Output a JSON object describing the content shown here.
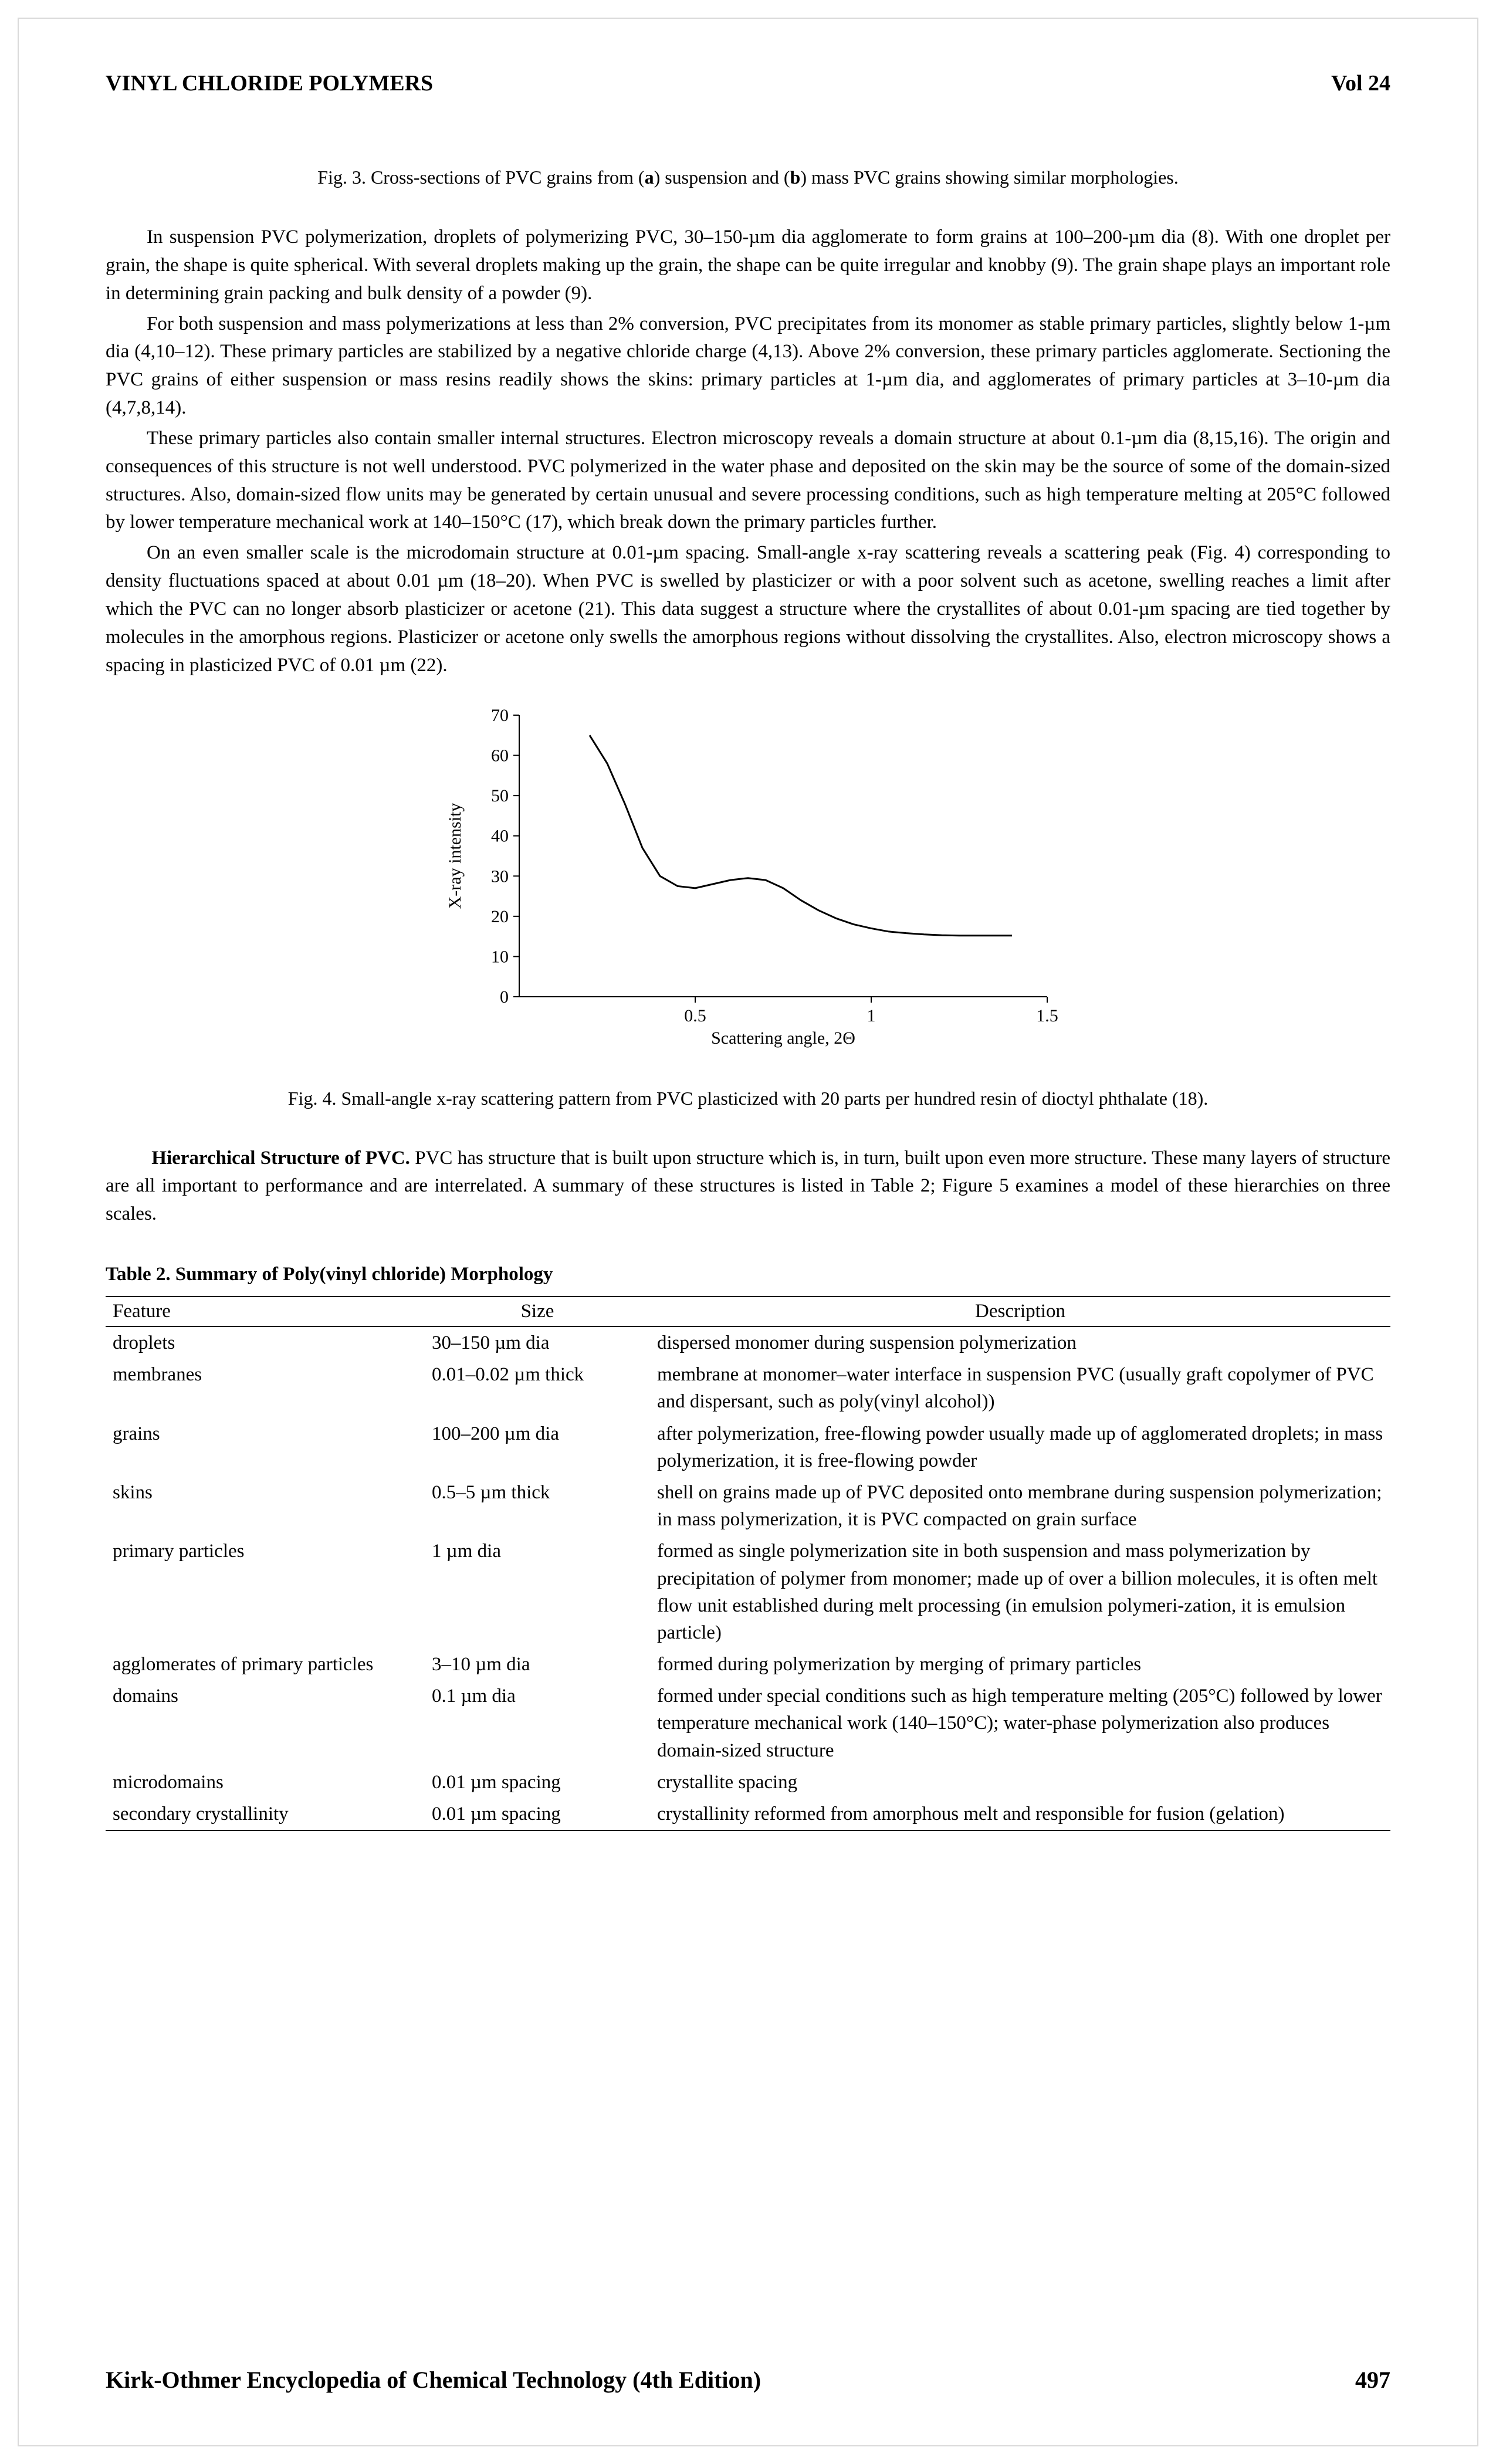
{
  "header": {
    "title": "VINYL CHLORIDE POLYMERS",
    "vol": "Vol 24"
  },
  "fig3_caption_html": "Fig. 3. Cross-sections of PVC grains from (<b>a</b>) suspension and (<b>b</b>) mass PVC grains showing similar morphologies.",
  "paragraphs": [
    "In suspension PVC polymerization, droplets of polymerizing PVC, 30–150-µm dia agglomerate to form grains at 100–200-µm dia (8). With one droplet per grain, the shape is quite spherical. With several droplets making up the grain, the shape can be quite irregular and knobby (9). The grain shape plays an important role in determining grain packing and bulk density of a powder (9).",
    "For both suspension and mass polymerizations at less than 2% conversion, PVC precipitates from its monomer as stable primary particles, slightly below 1-µm dia (4,10–12). These primary particles are stabilized by a negative chloride charge (4,13). Above 2% conversion, these primary particles agglomerate. Sectioning the PVC grains of either suspension or mass resins readily shows the skins: primary particles at 1-µm dia, and agglomerates of primary particles at 3–10-µm dia (4,7,8,14).",
    "These primary particles also contain smaller internal structures. Electron microscopy reveals a domain structure at about 0.1-µm dia (8,15,16). The origin and consequences of this structure is not well understood. PVC polymerized in the water phase and deposited on the skin may be the source of some of the domain-sized structures. Also, domain-sized flow units may be generated by certain unusual and severe processing conditions, such as high temperature melting at 205°C followed by lower temperature mechanical work at 140–150°C (17), which break down the primary particles further.",
    "On an even smaller scale is the microdomain structure at 0.01-µm spacing. Small-angle x-ray scattering reveals a scattering peak (Fig. 4) corresponding to density fluctuations spaced at about 0.01 µm (18–20). When PVC is swelled by plasticizer or with a poor solvent such as acetone, swelling reaches a limit after which the PVC can no longer absorb plasticizer or acetone (21). This data suggest a structure where the crystallites of about 0.01-µm spacing are tied together by molecules in the amorphous regions. Plasticizer or acetone only swells the amorphous regions without dissolving the crystallites. Also, electron microscopy shows a spacing in plasticized PVC of 0.01 µm (22)."
  ],
  "chart": {
    "type": "line",
    "xlabel": "Scattering angle, 2Θ",
    "ylabel": "X-ray intensity",
    "xlim": [
      0,
      1.5
    ],
    "ylim": [
      0,
      70
    ],
    "xticks": [
      0.5,
      1,
      1.5
    ],
    "yticks": [
      0,
      10,
      20,
      30,
      40,
      50,
      60,
      70
    ],
    "xtick_labels": [
      "0.5",
      "1",
      "1.5"
    ],
    "ytick_labels": [
      "0",
      "10",
      "20",
      "30",
      "40",
      "50",
      "60",
      "70"
    ],
    "line_color": "#000000",
    "line_width": 3,
    "axis_color": "#000000",
    "tick_len": 10,
    "label_fontsize": 30,
    "tick_fontsize": 30,
    "points": [
      [
        0.2,
        65
      ],
      [
        0.25,
        58
      ],
      [
        0.3,
        48
      ],
      [
        0.35,
        37
      ],
      [
        0.4,
        30
      ],
      [
        0.45,
        27.5
      ],
      [
        0.5,
        27
      ],
      [
        0.55,
        28
      ],
      [
        0.6,
        29
      ],
      [
        0.65,
        29.5
      ],
      [
        0.7,
        29
      ],
      [
        0.75,
        27
      ],
      [
        0.8,
        24
      ],
      [
        0.85,
        21.5
      ],
      [
        0.9,
        19.5
      ],
      [
        0.95,
        18
      ],
      [
        1.0,
        17
      ],
      [
        1.05,
        16.2
      ],
      [
        1.1,
        15.8
      ],
      [
        1.15,
        15.5
      ],
      [
        1.2,
        15.3
      ],
      [
        1.25,
        15.2
      ],
      [
        1.3,
        15.2
      ],
      [
        1.4,
        15.2
      ]
    ]
  },
  "fig4_caption": "Fig. 4. Small-angle x-ray scattering pattern from PVC plasticized with 20 parts per hundred resin of dioctyl phthalate (18).",
  "section": {
    "run_in": "Hierarchical Structure of PVC.",
    "rest": "   PVC has structure that is built upon structure which is, in turn, built upon even more structure. These many layers of structure are all important to performance and are interrelated. A summary of these structures is listed in Table 2; Figure 5 examines a model of these hierarchies on three scales."
  },
  "table": {
    "title": "Table 2. Summary of Poly(vinyl chloride) Morphology",
    "columns": [
      "Feature",
      "Size",
      "Description"
    ],
    "rows": [
      [
        "droplets",
        "30–150 µm dia",
        "dispersed monomer during suspension polymerization"
      ],
      [
        "membranes",
        "0.01–0.02 µm thick",
        "membrane at monomer–water interface in suspension PVC (usually graft copolymer of PVC and dispersant, such as poly(vinyl alcohol))"
      ],
      [
        "grains",
        "100–200 µm dia",
        "after polymerization, free-flowing powder usually made up of agglomerated droplets; in mass polymerization, it is free-flowing powder"
      ],
      [
        "skins",
        "0.5–5 µm thick",
        "shell on grains made up of PVC deposited onto membrane during suspension polymerization; in mass polymerization, it is PVC compacted on grain surface"
      ],
      [
        "primary particles",
        "1 µm dia",
        "formed as single polymerization site in both suspension and mass polymerization by precipitation of polymer from monomer; made up of over a billion molecules, it is often melt flow unit established during melt processing (in emulsion polymeri-zation, it is emulsion particle)"
      ],
      [
        "agglomerates of primary particles",
        "3–10 µm dia",
        "formed during polymerization by merging of primary particles"
      ],
      [
        "domains",
        "0.1 µm dia",
        "formed under special conditions such as high temperature melting (205°C) followed by lower temperature mechanical work (140–150°C); water-phase polymerization also produces domain-sized structure"
      ],
      [
        "microdomains",
        "0.01 µm spacing",
        "crystallite spacing"
      ],
      [
        "secondary crystallinity",
        "0.01 µm spacing",
        "crystallinity reformed from amorphous melt and responsible for fusion (gelation)"
      ]
    ]
  },
  "footer": {
    "source": "Kirk-Othmer Encyclopedia of Chemical Technology (4th Edition)",
    "page": "497"
  },
  "page_border_color": "#d9d9d9"
}
